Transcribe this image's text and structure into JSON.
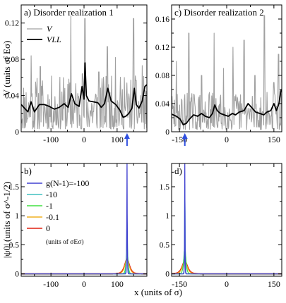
{
  "figure": {
    "xlabel_shared": "x  (units of σ)",
    "colors": {
      "V": "#a0a0a0",
      "VLL": "#000000",
      "g_m100": "#4040d0",
      "g_m10": "#40c0c0",
      "g_m1": "#40e040",
      "g_m01": "#f0b020",
      "g_0": "#e02010",
      "arrow": "#3050e0"
    }
  },
  "chart_data": [
    {
      "panel": "a",
      "type": "line",
      "title": "a) Disorder realization 1",
      "ylabel": "V  (units of Eσ)",
      "xlim": [
        -190,
        190
      ],
      "ylim": [
        0,
        0.14
      ],
      "xticks": [
        -100,
        0,
        100
      ],
      "yticks": [
        0,
        0.04,
        0.08,
        0.12
      ],
      "ytick_labels": [
        "0",
        "0.04",
        "0.08",
        "0.12"
      ],
      "legend_position": "top-left",
      "legend": [
        "V",
        "VLL"
      ],
      "arrow_x": 130,
      "series": [
        {
          "name": "V",
          "style": "noise",
          "seed": 11,
          "min": 0.003,
          "max": 0.062,
          "peaks": [
            [
              -160,
              0.084
            ],
            [
              -132,
              0.072
            ],
            [
              -40,
              0.128
            ],
            [
              -5,
              0.064
            ],
            [
              3,
              0.125
            ],
            [
              45,
              0.066
            ],
            [
              70,
              0.094
            ],
            [
              95,
              0.082
            ],
            [
              122,
              0.06
            ],
            [
              150,
              0.125
            ],
            [
              176,
              0.073
            ]
          ]
        },
        {
          "name": "VLL",
          "style": "smooth",
          "points": [
            [
              -190,
              0.03
            ],
            [
              -170,
              0.022
            ],
            [
              -160,
              0.033
            ],
            [
              -150,
              0.022
            ],
            [
              -135,
              0.03
            ],
            [
              -120,
              0.03
            ],
            [
              -105,
              0.028
            ],
            [
              -90,
              0.025
            ],
            [
              -75,
              0.027
            ],
            [
              -60,
              0.031
            ],
            [
              -48,
              0.027
            ],
            [
              -38,
              0.042
            ],
            [
              -28,
              0.031
            ],
            [
              -15,
              0.028
            ],
            [
              -6,
              0.05
            ],
            [
              0,
              0.036
            ],
            [
              3,
              0.076
            ],
            [
              7,
              0.04
            ],
            [
              15,
              0.034
            ],
            [
              30,
              0.033
            ],
            [
              42,
              0.032
            ],
            [
              52,
              0.027
            ],
            [
              62,
              0.031
            ],
            [
              72,
              0.048
            ],
            [
              82,
              0.034
            ],
            [
              96,
              0.03
            ],
            [
              108,
              0.024
            ],
            [
              118,
              0.016
            ],
            [
              126,
              0.017
            ],
            [
              135,
              0.02
            ],
            [
              145,
              0.026
            ],
            [
              152,
              0.048
            ],
            [
              158,
              0.03
            ],
            [
              166,
              0.026
            ],
            [
              176,
              0.034
            ],
            [
              184,
              0.05
            ],
            [
              190,
              0.052
            ]
          ]
        }
      ]
    },
    {
      "panel": "c",
      "type": "line",
      "title": "c) Disorder realization 2",
      "xlim": [
        -175,
        175
      ],
      "ylim": [
        0,
        0.18
      ],
      "xticks": [
        -150,
        0,
        150
      ],
      "yticks": [
        0,
        0.04,
        0.08,
        0.12,
        0.16
      ],
      "ytick_labels": [
        "0",
        "0.04",
        "0.08",
        "0.12",
        "0.16"
      ],
      "arrow_x": -133,
      "series": [
        {
          "name": "V",
          "style": "noise",
          "seed": 29,
          "min": 0.003,
          "max": 0.058,
          "peaks": [
            [
              -160,
              0.1
            ],
            [
              -120,
              0.14
            ],
            [
              -80,
              0.08
            ],
            [
              -40,
              0.14
            ],
            [
              -10,
              0.09
            ],
            [
              20,
              0.12
            ],
            [
              55,
              0.13
            ],
            [
              90,
              0.08
            ],
            [
              120,
              0.165
            ],
            [
              150,
              0.07
            ],
            [
              165,
              0.11
            ]
          ]
        },
        {
          "name": "VLL",
          "style": "smooth",
          "points": [
            [
              -175,
              0.025
            ],
            [
              -160,
              0.022
            ],
            [
              -148,
              0.018
            ],
            [
              -138,
              0.01
            ],
            [
              -128,
              0.012
            ],
            [
              -118,
              0.018
            ],
            [
              -105,
              0.024
            ],
            [
              -92,
              0.022
            ],
            [
              -80,
              0.026
            ],
            [
              -68,
              0.022
            ],
            [
              -55,
              0.02
            ],
            [
              -45,
              0.026
            ],
            [
              -38,
              0.038
            ],
            [
              -30,
              0.03
            ],
            [
              -20,
              0.026
            ],
            [
              -8,
              0.024
            ],
            [
              5,
              0.022
            ],
            [
              18,
              0.026
            ],
            [
              28,
              0.024
            ],
            [
              40,
              0.028
            ],
            [
              55,
              0.03
            ],
            [
              68,
              0.04
            ],
            [
              80,
              0.034
            ],
            [
              92,
              0.028
            ],
            [
              105,
              0.026
            ],
            [
              118,
              0.024
            ],
            [
              128,
              0.028
            ],
            [
              140,
              0.03
            ],
            [
              150,
              0.04
            ],
            [
              158,
              0.03
            ],
            [
              166,
              0.04
            ],
            [
              172,
              0.058
            ],
            [
              175,
              0.06
            ]
          ]
        }
      ]
    },
    {
      "panel": "b",
      "type": "line",
      "title": "b)",
      "ylabel": "|ψ0|  (units of σ^-1/2)",
      "xlim": [
        -190,
        190
      ],
      "ylim": [
        -0.04,
        1.9
      ],
      "xticks": [
        -100,
        0,
        100
      ],
      "yticks": [
        0,
        0.5,
        1,
        1.5
      ],
      "ytick_labels": [
        "0",
        "0.5",
        "1",
        "1.5"
      ],
      "legend_position": "top-left",
      "legend_title": "g(N-1)=",
      "legend": [
        "-100",
        "-10",
        "-1",
        "-0.1",
        "0"
      ],
      "legend_note": "(units of σEσ)",
      "center": 130,
      "series": [
        {
          "name": "-100",
          "color_key": "g_m100",
          "amp": 1.95,
          "width": 0.6
        },
        {
          "name": "-10",
          "color_key": "g_m10",
          "amp": 0.9,
          "width": 1.2
        },
        {
          "name": "-1",
          "color_key": "g_m1",
          "amp": 0.48,
          "width": 2.2
        },
        {
          "name": "-0.1",
          "color_key": "g_m01",
          "amp": 0.26,
          "width": 5.5
        },
        {
          "name": "0",
          "color_key": "g_0",
          "amp": 0.25,
          "width": 6.5
        }
      ]
    },
    {
      "panel": "d",
      "type": "line",
      "title": "d)",
      "xlim": [
        -175,
        175
      ],
      "ylim": [
        -0.04,
        1.9
      ],
      "xticks": [
        -150,
        0,
        150
      ],
      "yticks": [
        0,
        0.5,
        1,
        1.5
      ],
      "ytick_labels": [
        "0",
        "0.5",
        "1",
        "1.5"
      ],
      "center": -133,
      "series": [
        {
          "name": "-100",
          "color_key": "g_m100",
          "amp": 1.95,
          "width": 0.5
        },
        {
          "name": "-10",
          "color_key": "g_m10",
          "amp": 1.55,
          "width": 0.8
        },
        {
          "name": "-1",
          "color_key": "g_m1",
          "amp": 0.45,
          "width": 3.0
        },
        {
          "name": "-0.1",
          "color_key": "g_m01",
          "amp": 0.22,
          "width": 6.5
        },
        {
          "name": "0",
          "color_key": "g_0",
          "amp": 0.22,
          "width": 7.5
        }
      ]
    }
  ]
}
